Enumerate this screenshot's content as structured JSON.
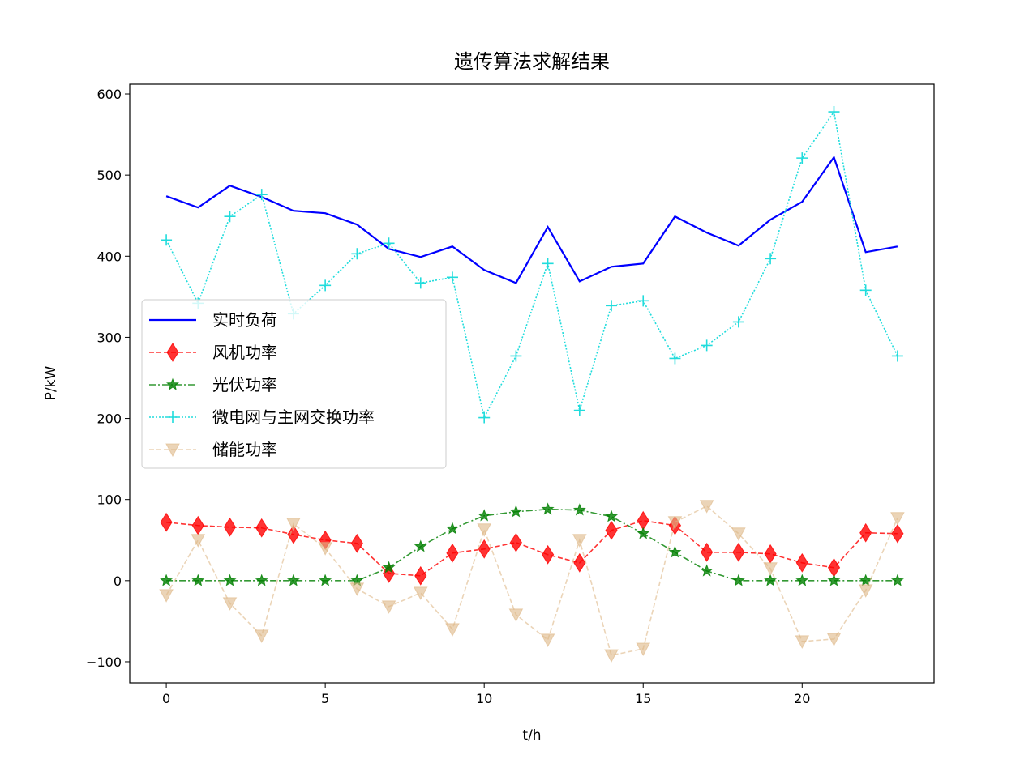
{
  "chart_data": {
    "type": "line",
    "title": "遗传算法求解结果",
    "xlabel": "t/h",
    "ylabel": "P/kW",
    "xlim": [
      -1.15,
      24.15
    ],
    "ylim": [
      -126,
      612
    ],
    "xticks": [
      0,
      5,
      10,
      15,
      20
    ],
    "yticks": [
      -100,
      0,
      100,
      200,
      300,
      400,
      500,
      600
    ],
    "legend_position": "center-left",
    "x": [
      0,
      1,
      2,
      3,
      4,
      5,
      6,
      7,
      8,
      9,
      10,
      11,
      12,
      13,
      14,
      15,
      16,
      17,
      18,
      19,
      20,
      21,
      22,
      23
    ],
    "series": [
      {
        "name": "实时负荷",
        "color": "#0000ff",
        "dash": "",
        "marker": "none",
        "alpha": 1,
        "values": [
          474,
          460,
          487,
          473,
          456,
          453,
          439,
          409,
          399,
          412,
          383,
          367,
          436,
          369,
          387,
          391,
          449,
          429,
          413,
          445,
          467,
          522,
          405,
          412
        ]
      },
      {
        "name": "风机功率",
        "color": "#ff0000",
        "dash": "6,3",
        "marker": "diamond",
        "alpha": 0.8,
        "values": [
          72,
          68,
          66,
          65,
          57,
          50,
          46,
          9,
          6,
          34,
          39,
          47,
          32,
          22,
          62,
          74,
          68,
          35,
          35,
          33,
          22,
          16,
          59,
          58
        ]
      },
      {
        "name": "光伏功率",
        "color": "#008000",
        "dash": "8,3,2,3",
        "marker": "star",
        "alpha": 0.8,
        "values": [
          0,
          0,
          0,
          0,
          0,
          0,
          0,
          16,
          42,
          64,
          80,
          85,
          88,
          87,
          79,
          58,
          35,
          12,
          0,
          0,
          0,
          0,
          0,
          0
        ]
      },
      {
        "name": "微电网与主网交换功率",
        "color": "#20dcdc",
        "dash": "2,2",
        "marker": "plus",
        "alpha": 1,
        "values": [
          420,
          342,
          449,
          476,
          329,
          364,
          403,
          416,
          367,
          374,
          201,
          277,
          391,
          210,
          339,
          345,
          274,
          290,
          319,
          397,
          521,
          578,
          358,
          277
        ]
      },
      {
        "name": "储能功率",
        "color": "#deb887",
        "dash": "6,3",
        "marker": "triangle-down",
        "alpha": 0.6,
        "values": [
          -18,
          50,
          -28,
          -68,
          70,
          40,
          -10,
          -32,
          -15,
          -60,
          63,
          -42,
          -73,
          50,
          -92,
          -84,
          72,
          92,
          58,
          15,
          -75,
          -72,
          -12,
          77
        ]
      }
    ]
  }
}
